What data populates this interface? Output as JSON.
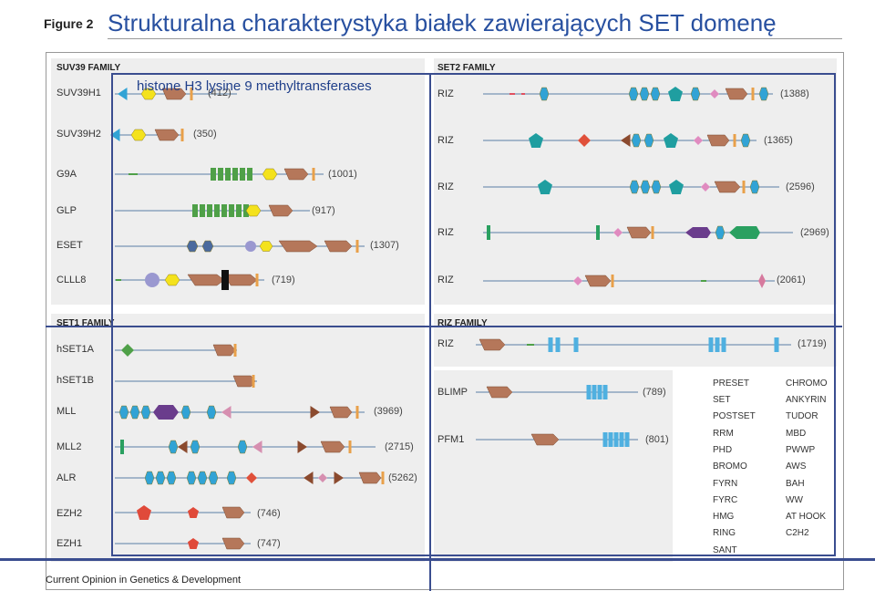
{
  "header": {
    "figure_label": "Figure 2",
    "title": "Strukturalna charakterystyka białek zawierających SET domenę",
    "subtitle": "histone H3 lysine 9 methyltransferases"
  },
  "footer": "Current Opinion in Genetics & Development",
  "families": {
    "suv39": "SUV39 FAMILY",
    "set2": "SET2 FAMILY",
    "set1": "SET1 FAMILY",
    "riz": "RIZ FAMILY"
  },
  "colors": {
    "preset": "#f4e21c",
    "set": "#b5775a",
    "postset": "#e8a04a",
    "rrm": "#4fa048",
    "phd": "#31a3d5",
    "bromo": "#6a3c8c",
    "fyrn": "#d68fb0",
    "fyrc": "#8b4a2e",
    "hmg": "#e0503a",
    "ring": "#8b4a2e",
    "sant": "#e04a3a",
    "chromo": "#31a3d5",
    "ankyrin": "#4fa048",
    "tudor": "#4a6a9e",
    "mbd": "#9a98d0",
    "pwwp": "#1f9ea0",
    "aws": "#e08bc0",
    "bah": "#d67a9e",
    "ww": "#2aa060",
    "athook": "#2aa060",
    "c2h2": "#4fb0e0",
    "line": "#5a7fa6"
  },
  "proteins": [
    {
      "id": "suv39h1",
      "label": "SUV39H1",
      "length": "(412)"
    },
    {
      "id": "suv39h2",
      "label": "SUV39H2",
      "length": "(350)"
    },
    {
      "id": "g9a",
      "label": "G9A",
      "length": "(1001)"
    },
    {
      "id": "glp",
      "label": "GLP",
      "length": "(917)"
    },
    {
      "id": "eset",
      "label": "ESET",
      "length": "(1307)"
    },
    {
      "id": "clll8",
      "label": "CLLL8",
      "length": "(719)"
    },
    {
      "id": "riz1",
      "label": "RIZ",
      "length": "(1388)"
    },
    {
      "id": "riz2",
      "label": "RIZ",
      "length": "(1365)"
    },
    {
      "id": "riz3",
      "label": "RIZ",
      "length": "(2596)"
    },
    {
      "id": "riz4",
      "label": "RIZ",
      "length": "(2969)"
    },
    {
      "id": "riz5",
      "label": "RIZ",
      "length": "(2061)"
    },
    {
      "id": "hset1a",
      "label": "hSET1A",
      "length": ""
    },
    {
      "id": "hset1b",
      "label": "hSET1B",
      "length": ""
    },
    {
      "id": "mll",
      "label": "MLL",
      "length": "(3969)"
    },
    {
      "id": "mll2",
      "label": "MLL2",
      "length": "(2715)"
    },
    {
      "id": "alr",
      "label": "ALR",
      "length": "(5262)"
    },
    {
      "id": "ezh2",
      "label": "EZH2",
      "length": "(746)"
    },
    {
      "id": "ezh1",
      "label": "EZH1",
      "length": "(747)"
    },
    {
      "id": "riz6",
      "label": "RIZ",
      "length": "(1719)"
    },
    {
      "id": "blimp",
      "label": "BLIMP",
      "length": "(789)"
    },
    {
      "id": "pfm1",
      "label": "PFM1",
      "length": "(801)"
    }
  ],
  "legend": [
    {
      "id": "preset",
      "label": "PRESET",
      "icon": "preset-icon"
    },
    {
      "id": "chromo",
      "label": "CHROMO",
      "icon": "chromo-icon"
    },
    {
      "id": "set",
      "label": "SET",
      "icon": "set-icon"
    },
    {
      "id": "ankyrin",
      "label": "ANKYRIN",
      "icon": "ankyrin-icon"
    },
    {
      "id": "postset",
      "label": "POSTSET",
      "icon": "postset-icon"
    },
    {
      "id": "tudor",
      "label": "TUDOR",
      "icon": "tudor-icon"
    },
    {
      "id": "rrm",
      "label": "RRM",
      "icon": "rrm-icon"
    },
    {
      "id": "mbd",
      "label": "MBD",
      "icon": "mbd-icon"
    },
    {
      "id": "phd",
      "label": "PHD",
      "icon": "phd-icon"
    },
    {
      "id": "pwwp",
      "label": "PWWP",
      "icon": "pwwp-icon"
    },
    {
      "id": "bromo",
      "label": "BROMO",
      "icon": "bromo-icon"
    },
    {
      "id": "aws",
      "label": "AWS",
      "icon": "aws-icon"
    },
    {
      "id": "fyrn",
      "label": "FYRN",
      "icon": "fyrn-icon"
    },
    {
      "id": "bah",
      "label": "BAH",
      "icon": "bah-icon"
    },
    {
      "id": "fyrc",
      "label": "FYRC",
      "icon": "fyrc-icon"
    },
    {
      "id": "ww",
      "label": "WW",
      "icon": "ww-icon"
    },
    {
      "id": "hmg",
      "label": "HMG",
      "icon": "hmg-icon"
    },
    {
      "id": "athook",
      "label": "AT HOOK",
      "icon": "athook-icon"
    },
    {
      "id": "ring",
      "label": "RING",
      "icon": "ring-icon"
    },
    {
      "id": "c2h2",
      "label": "C2H2",
      "icon": "c2h2-icon"
    },
    {
      "id": "sant",
      "label": "SANT",
      "icon": "sant-icon"
    }
  ]
}
